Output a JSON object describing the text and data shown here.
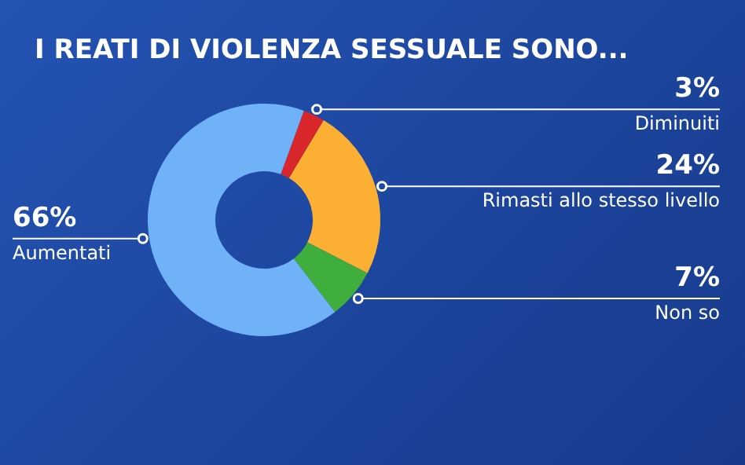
{
  "chart_data": {
    "type": "donut",
    "title": "I REATI DI VIOLENZA SESSUALE SONO...",
    "categories": [
      "Diminuiti",
      "Rimasti allo stesso livello",
      "Non so",
      "Aumentati"
    ],
    "values": [
      3,
      24,
      7,
      66
    ],
    "value_labels": [
      "3%",
      "24%",
      "7%",
      "66%"
    ],
    "colors": [
      "#d9262c",
      "#fbb034",
      "#3fae3c",
      "#6fb2f7"
    ]
  }
}
